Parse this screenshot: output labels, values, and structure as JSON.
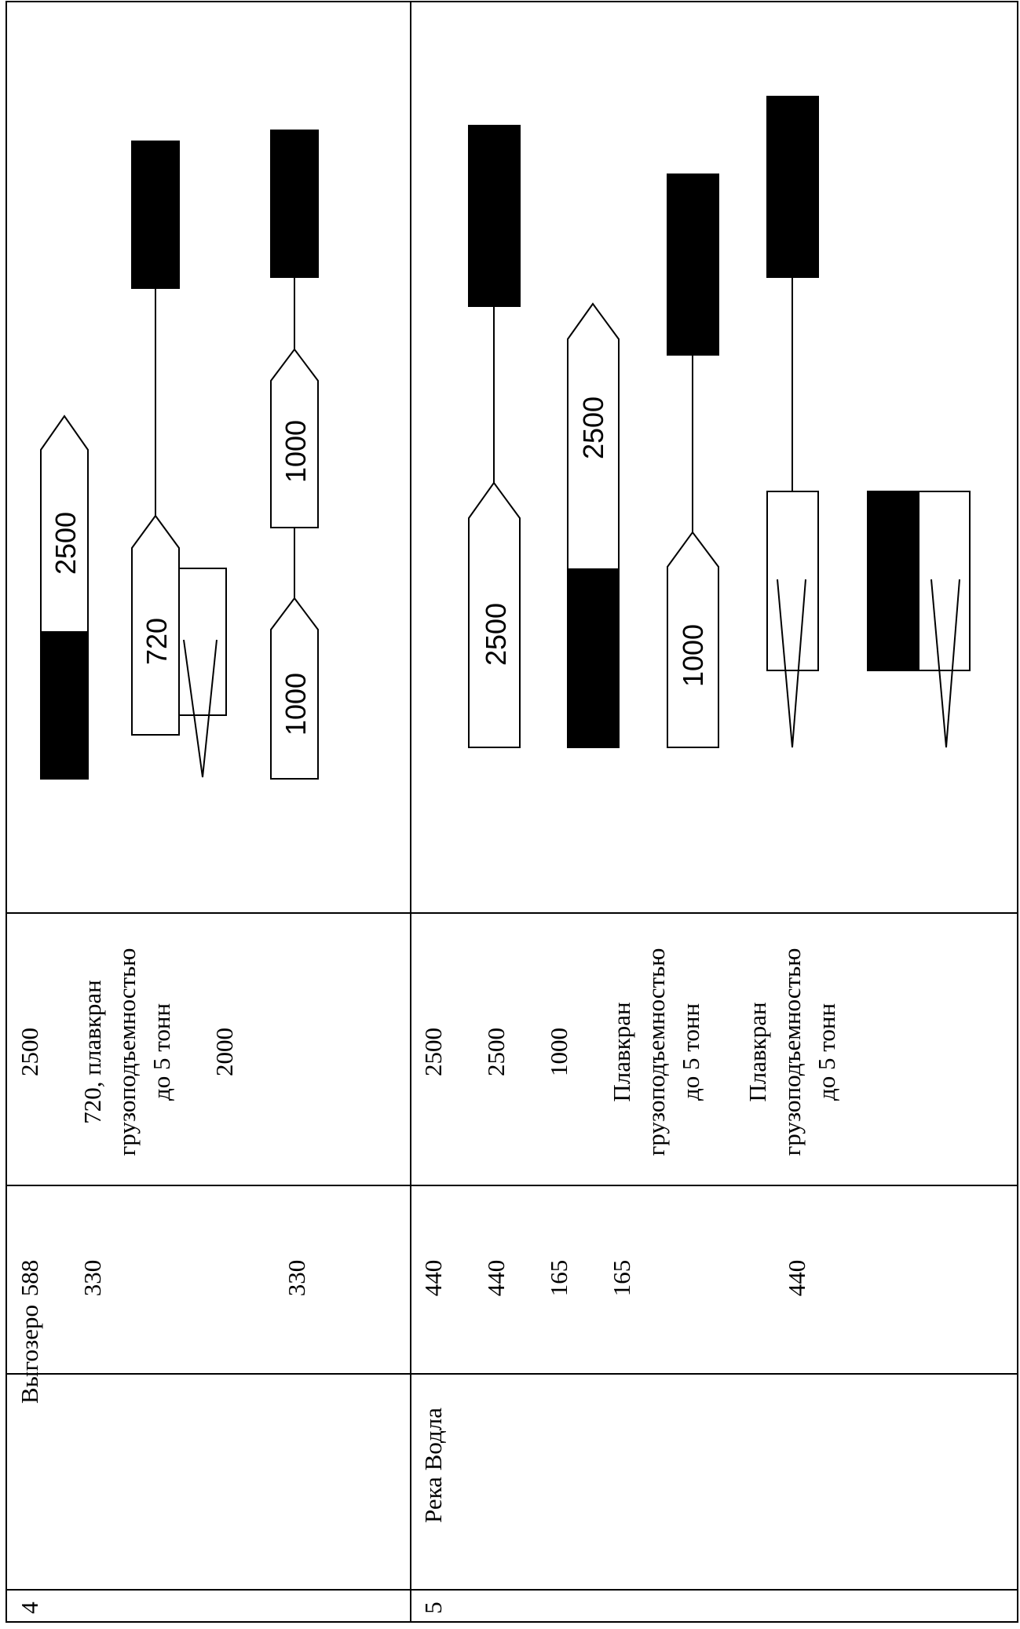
{
  "table": {
    "row4": {
      "num": "4",
      "name": "Выгозеро",
      "length": [
        "588",
        "330",
        "330"
      ],
      "capacity": {
        "c1": "2500",
        "c2_line1": "720, плавкран",
        "c2_line2": "грузоподъемностью",
        "c2_line3": "до 5 тонн",
        "c3": "2000"
      },
      "diagram_labels": [
        "2500",
        "720",
        "1000",
        "1000"
      ]
    },
    "row5": {
      "num": "5",
      "name": "Река Водла",
      "length": [
        "440",
        "440",
        "165",
        "165",
        "440"
      ],
      "capacity": {
        "c1": "2500",
        "c2": "2500",
        "c3": "1000",
        "c4_line1": "Плавкран",
        "c4_line2": "грузоподъемностью",
        "c4_line3": "до 5 тонн",
        "c5_line1": "Плавкран",
        "c5_line2": "грузоподъемностью",
        "c5_line3": "до 5 тонн"
      },
      "diagram_labels": [
        "2500",
        "2500",
        "1000"
      ]
    }
  }
}
